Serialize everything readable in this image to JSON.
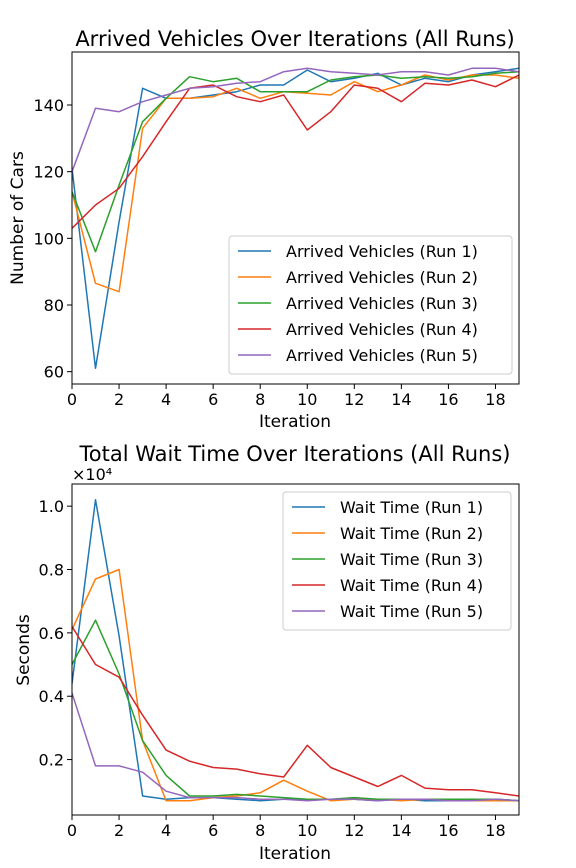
{
  "chart_data": [
    {
      "type": "line",
      "title": "Arrived Vehicles Over Iterations (All Runs)",
      "xlabel": "Iteration",
      "ylabel": "Number of Cars",
      "xlim": [
        0,
        19
      ],
      "ylim": [
        56.3,
        155.9
      ],
      "x_ticks": [
        0,
        2,
        4,
        6,
        8,
        10,
        12,
        14,
        16,
        18
      ],
      "y_ticks": [
        60,
        80,
        100,
        120,
        140
      ],
      "y_tick_labels": [
        "60",
        "80",
        "100",
        "120",
        "140"
      ],
      "multiplier_label": "",
      "legend_position": "lower-right",
      "x": [
        0,
        1,
        2,
        3,
        4,
        5,
        6,
        7,
        8,
        9,
        10,
        11,
        12,
        13,
        14,
        15,
        16,
        17,
        18,
        19
      ],
      "series": [
        {
          "name": "Arrived Vehicles (Run 1)",
          "color": "#1f77b4",
          "values": [
            121,
            61,
            105,
            145,
            142,
            142,
            143,
            144,
            146,
            146,
            150.5,
            147,
            148,
            149.5,
            146,
            148,
            147,
            149,
            150,
            151
          ]
        },
        {
          "name": "Arrived Vehicles (Run 2)",
          "color": "#ff7f0e",
          "values": [
            114,
            86.5,
            84,
            133,
            142,
            142,
            142.5,
            145,
            142,
            144,
            143.5,
            143,
            147,
            144,
            146,
            149,
            147.5,
            149,
            149,
            148
          ]
        },
        {
          "name": "Arrived Vehicles (Run 3)",
          "color": "#2ca02c",
          "values": [
            114,
            96,
            116,
            135,
            142,
            148.5,
            147,
            148,
            144,
            144,
            144,
            147.5,
            148.5,
            149,
            148,
            148.5,
            148,
            148.5,
            149.5,
            150
          ]
        },
        {
          "name": "Arrived Vehicles (Run 4)",
          "color": "#d62728",
          "values": [
            103,
            110,
            115,
            124.5,
            135,
            145,
            146,
            142.5,
            141,
            143,
            132.5,
            138,
            146,
            145,
            141,
            146.5,
            146,
            147.5,
            145.5,
            149
          ]
        },
        {
          "name": "Arrived Vehicles (Run 5)",
          "color": "#9467bd",
          "values": [
            120,
            139,
            138,
            141,
            143,
            145,
            145.5,
            146.5,
            147,
            150,
            151,
            150,
            149.5,
            149,
            150,
            150,
            149,
            151,
            151,
            150
          ]
        }
      ]
    },
    {
      "type": "line",
      "title": "Total Wait Time Over Iterations (All Runs)",
      "xlabel": "Iteration",
      "ylabel": "Seconds",
      "xlim": [
        0,
        19
      ],
      "ylim": [
        250,
        10700
      ],
      "x_ticks": [
        0,
        2,
        4,
        6,
        8,
        10,
        12,
        14,
        16,
        18
      ],
      "y_ticks": [
        2000,
        4000,
        6000,
        8000,
        10000
      ],
      "y_tick_labels": [
        "0.2",
        "0.4",
        "0.6",
        "0.8",
        "1.0"
      ],
      "multiplier_label": "×10⁴",
      "legend_position": "top-right",
      "x": [
        0,
        1,
        2,
        3,
        4,
        5,
        6,
        7,
        8,
        9,
        10,
        11,
        12,
        13,
        14,
        15,
        16,
        17,
        18,
        19
      ],
      "series": [
        {
          "name": "Wait Time (Run 1)",
          "color": "#1f77b4",
          "values": [
            4400,
            10200,
            5900,
            850,
            750,
            800,
            800,
            750,
            700,
            750,
            750,
            750,
            750,
            700,
            750,
            700,
            700,
            750,
            750,
            700
          ]
        },
        {
          "name": "Wait Time (Run 2)",
          "color": "#ff7f0e",
          "values": [
            6100,
            7700,
            8000,
            2600,
            700,
            700,
            800,
            850,
            950,
            1350,
            1000,
            700,
            750,
            750,
            700,
            750,
            750,
            700,
            700,
            700
          ]
        },
        {
          "name": "Wait Time (Run 3)",
          "color": "#2ca02c",
          "values": [
            5000,
            6400,
            4700,
            2600,
            1500,
            850,
            850,
            900,
            850,
            800,
            750,
            750,
            800,
            750,
            750,
            750,
            750,
            750,
            750,
            700
          ]
        },
        {
          "name": "Wait Time (Run 4)",
          "color": "#d62728",
          "values": [
            6200,
            5000,
            4600,
            3400,
            2300,
            1950,
            1750,
            1700,
            1550,
            1450,
            2450,
            1750,
            1450,
            1150,
            1500,
            1100,
            1050,
            1050,
            950,
            850
          ]
        },
        {
          "name": "Wait Time (Run 5)",
          "color": "#9467bd",
          "values": [
            4100,
            1800,
            1800,
            1600,
            1000,
            800,
            800,
            800,
            750,
            750,
            700,
            750,
            750,
            700,
            750,
            750,
            700,
            700,
            750,
            700
          ]
        }
      ]
    }
  ]
}
